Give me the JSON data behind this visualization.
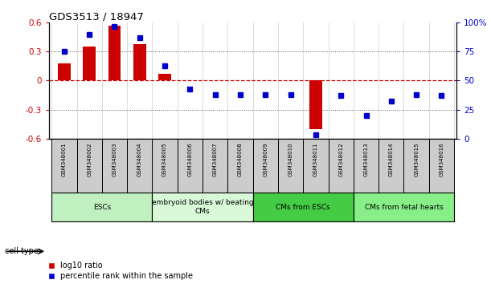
{
  "title": "GDS3513 / 18947",
  "samples": [
    "GSM348001",
    "GSM348002",
    "GSM348003",
    "GSM348004",
    "GSM348005",
    "GSM348006",
    "GSM348007",
    "GSM348008",
    "GSM348009",
    "GSM348010",
    "GSM348011",
    "GSM348012",
    "GSM348013",
    "GSM348014",
    "GSM348015",
    "GSM348016"
  ],
  "log10_ratio": [
    0.18,
    0.35,
    0.57,
    0.38,
    0.07,
    0.0,
    0.0,
    0.0,
    0.0,
    0.0,
    -0.5,
    0.0,
    0.0,
    0.0,
    0.0,
    0.0
  ],
  "percentile_rank": [
    75,
    90,
    97,
    87,
    63,
    43,
    38,
    38,
    38,
    38,
    3,
    37,
    20,
    32,
    38,
    37
  ],
  "cell_types": [
    {
      "label": "ESCs",
      "start": 0,
      "end": 3,
      "color": "#c0f0c0"
    },
    {
      "label": "embryoid bodies w/ beating\nCMs",
      "start": 4,
      "end": 7,
      "color": "#d8f8d8"
    },
    {
      "label": "CMs from ESCs",
      "start": 8,
      "end": 11,
      "color": "#44cc44"
    },
    {
      "label": "CMs from fetal hearts",
      "start": 12,
      "end": 15,
      "color": "#88ee88"
    }
  ],
  "ylim_left": [
    -0.6,
    0.6
  ],
  "ylim_right": [
    0,
    100
  ],
  "yticks_left": [
    -0.6,
    -0.3,
    0.0,
    0.3,
    0.6
  ],
  "yticks_right": [
    0,
    25,
    50,
    75,
    100
  ],
  "ytick_labels_right": [
    "0",
    "25",
    "50",
    "75",
    "100%"
  ],
  "bar_color": "#cc0000",
  "dot_color": "#0000cc",
  "hline_color": "#cc0000",
  "dotted_color": "#555555",
  "legend_red_label": "log10 ratio",
  "legend_blue_label": "percentile rank within the sample",
  "cell_type_label": "cell type",
  "sample_box_color": "#cccccc",
  "bar_width": 0.5,
  "dot_size": 5
}
